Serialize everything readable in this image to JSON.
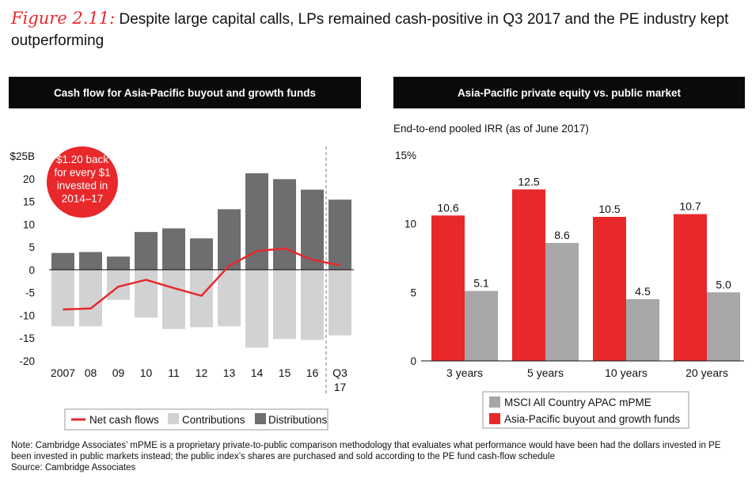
{
  "figure": {
    "label": "Figure 2.11:",
    "text": " Despite large capital calls, LPs remained cash-positive in Q3 2017 and the PE industry kept outperforming"
  },
  "left_panel": {
    "header": "Cash flow for Asia-Pacific buyout and growth funds"
  },
  "right_panel": {
    "header": "Asia-Pacific private equity vs. public market",
    "subtitle": "End-to-end pooled IRR (as of June 2017)"
  },
  "footnotes": {
    "note": "Note: Cambridge Associates’ mPME is a proprietary private-to-public comparison methodology that evaluates what performance would have been had the dollars invested in PE been invested in public markets instead; the public index’s shares are purchased and sold according to the PE fund cash-flow schedule",
    "source": "Source: Cambridge Associates"
  },
  "colors": {
    "red": "#e8282b",
    "dark_gray": "#6e6e70",
    "light_gray": "#d2d2d3",
    "mid_gray": "#a7a7a9",
    "black": "#0a0a0a"
  },
  "chart_data": [
    {
      "type": "bar",
      "categories": [
        "2007",
        "08",
        "09",
        "10",
        "11",
        "12",
        "13",
        "14",
        "15",
        "16",
        "Q3 17"
      ],
      "series": [
        {
          "name": "Distributions",
          "values": [
            3.7,
            3.9,
            2.9,
            8.3,
            9.1,
            6.9,
            13.3,
            21.2,
            19.9,
            17.6,
            15.4
          ]
        },
        {
          "name": "Contributions",
          "values": [
            -12.4,
            -12.4,
            -6.6,
            -10.5,
            -13.0,
            -12.6,
            -12.4,
            -17.1,
            -15.2,
            -15.4,
            -14.4
          ]
        },
        {
          "name": "Net cash flows",
          "values": [
            -8.7,
            -8.5,
            -3.7,
            -2.2,
            -4.0,
            -5.7,
            0.9,
            4.1,
            4.7,
            2.2,
            1.0
          ]
        }
      ],
      "y_tick_labels": [
        "$25B",
        "20",
        "15",
        "10",
        "5",
        "0",
        "-5",
        "-10",
        "-15",
        "-20"
      ],
      "ylim": [
        -20,
        25
      ],
      "annotation": "$1.20 back for every $1 invested in 2014–17",
      "legend": [
        "Net cash flows",
        "Contributions",
        "Distributions"
      ],
      "legend_position": "bottom"
    },
    {
      "type": "bar",
      "categories": [
        "3 years",
        "5 years",
        "10 years",
        "20 years"
      ],
      "series": [
        {
          "name": "Asia-Pacific buyout and growth funds",
          "values": [
            10.6,
            12.5,
            10.5,
            10.7
          ]
        },
        {
          "name": "MSCI All Country APAC mPME",
          "values": [
            5.1,
            8.6,
            4.5,
            5.0
          ]
        }
      ],
      "value_labels": {
        "Asia-Pacific buyout and growth funds": [
          "10.6",
          "12.5",
          "10.5",
          "10.7"
        ],
        "MSCI All Country APAC mPME": [
          "5.1",
          "8.6",
          "4.5",
          "5.0"
        ]
      },
      "y_tick_labels": [
        "15%",
        "10",
        "5",
        "0"
      ],
      "ylim": [
        0,
        15
      ],
      "legend": [
        "MSCI All Country APAC mPME",
        "Asia-Pacific buyout and growth funds"
      ],
      "legend_position": "bottom"
    }
  ]
}
